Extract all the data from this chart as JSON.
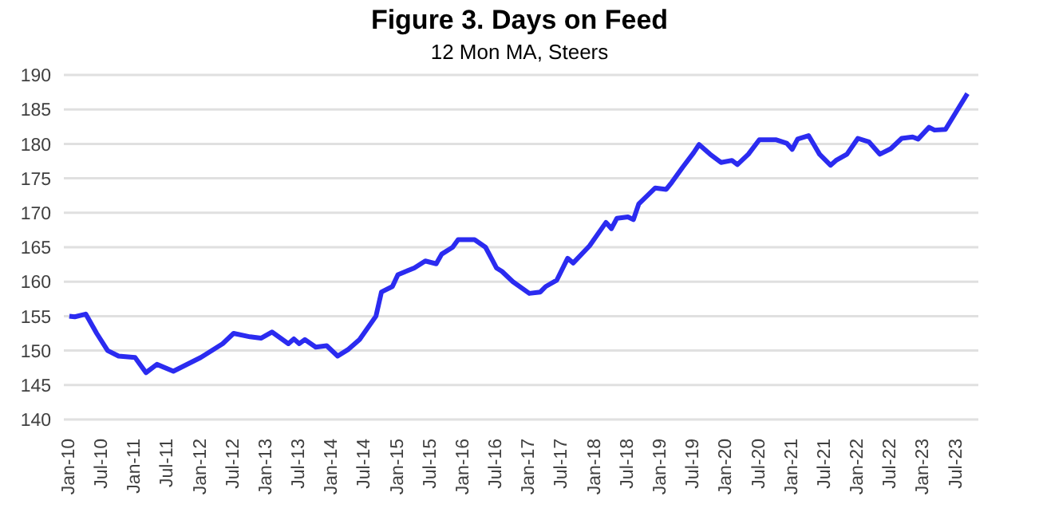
{
  "chart_data": {
    "type": "line",
    "title": "Figure 3. Days on Feed",
    "subtitle": "12 Mon MA, Steers",
    "x": [
      "2010-01",
      "2010-02",
      "2010-04",
      "2010-06",
      "2010-08",
      "2010-10",
      "2011-01",
      "2011-03",
      "2011-05",
      "2011-08",
      "2012-01",
      "2012-05",
      "2012-07",
      "2012-10",
      "2012-12",
      "2013-02",
      "2013-05",
      "2013-06",
      "2013-07",
      "2013-08",
      "2013-10",
      "2013-12",
      "2014-02",
      "2014-04",
      "2014-06",
      "2014-09",
      "2014-10",
      "2014-12",
      "2015-01",
      "2015-04",
      "2015-06",
      "2015-08",
      "2015-09",
      "2015-11",
      "2015-12",
      "2016-03",
      "2016-05",
      "2016-06",
      "2016-07",
      "2016-08",
      "2016-10",
      "2017-01",
      "2017-03",
      "2017-04",
      "2017-06",
      "2017-08",
      "2017-09",
      "2017-12",
      "2018-03",
      "2018-04",
      "2018-05",
      "2018-07",
      "2018-08",
      "2018-09",
      "2018-12",
      "2019-02",
      "2019-03",
      "2019-05",
      "2019-07",
      "2019-08",
      "2019-10",
      "2019-12",
      "2020-02",
      "2020-03",
      "2020-05",
      "2020-07",
      "2020-10",
      "2020-12",
      "2021-01",
      "2021-02",
      "2021-04",
      "2021-06",
      "2021-08",
      "2021-09",
      "2021-11",
      "2022-01",
      "2022-03",
      "2022-05",
      "2022-07",
      "2022-09",
      "2022-11",
      "2022-12",
      "2023-02",
      "2023-03",
      "2023-05",
      "2023-07",
      "2023-09"
    ],
    "series": [
      {
        "color": "#2b2bf0",
        "values": [
          155.0,
          154.9,
          155.3,
          152.5,
          150.0,
          149.2,
          149.0,
          146.8,
          148.0,
          147.0,
          149.0,
          151.0,
          152.5,
          152.0,
          151.8,
          152.7,
          151.0,
          151.7,
          151.0,
          151.6,
          150.5,
          150.7,
          149.2,
          150.2,
          151.6,
          155.0,
          158.5,
          159.3,
          161.0,
          162.0,
          163.0,
          162.6,
          164.0,
          165.0,
          166.1,
          166.1,
          165.0,
          163.5,
          162.0,
          161.5,
          160.0,
          158.3,
          158.5,
          159.3,
          160.2,
          163.4,
          162.7,
          165.2,
          168.6,
          167.7,
          169.2,
          169.4,
          169.0,
          171.3,
          173.6,
          173.4,
          174.4,
          176.6,
          178.7,
          179.9,
          178.5,
          177.3,
          177.6,
          177.0,
          178.5,
          180.6,
          180.6,
          180.1,
          179.2,
          180.7,
          181.2,
          178.5,
          176.9,
          177.6,
          178.5,
          180.8,
          180.3,
          178.5,
          179.3,
          180.8,
          181.0,
          180.7,
          182.4,
          182.0,
          182.1,
          184.7,
          187.3
        ]
      }
    ],
    "xlim": [
      "2009-12",
      "2023-11"
    ],
    "xticks": [
      {
        "value": "2010-01",
        "label": "Jan-10"
      },
      {
        "value": "2010-07",
        "label": "Jul-10"
      },
      {
        "value": "2011-01",
        "label": "Jan-11"
      },
      {
        "value": "2011-07",
        "label": "Jul-11"
      },
      {
        "value": "2012-01",
        "label": "Jan-12"
      },
      {
        "value": "2012-07",
        "label": "Jul-12"
      },
      {
        "value": "2013-01",
        "label": "Jan-13"
      },
      {
        "value": "2013-07",
        "label": "Jul-13"
      },
      {
        "value": "2014-01",
        "label": "Jan-14"
      },
      {
        "value": "2014-07",
        "label": "Jul-14"
      },
      {
        "value": "2015-01",
        "label": "Jan-15"
      },
      {
        "value": "2015-07",
        "label": "Jul-15"
      },
      {
        "value": "2016-01",
        "label": "Jan-16"
      },
      {
        "value": "2016-07",
        "label": "Jul-16"
      },
      {
        "value": "2017-01",
        "label": "Jan-17"
      },
      {
        "value": "2017-07",
        "label": "Jul-17"
      },
      {
        "value": "2018-01",
        "label": "Jan-18"
      },
      {
        "value": "2018-07",
        "label": "Jul-18"
      },
      {
        "value": "2019-01",
        "label": "Jan-19"
      },
      {
        "value": "2019-07",
        "label": "Jul-19"
      },
      {
        "value": "2020-01",
        "label": "Jan-20"
      },
      {
        "value": "2020-07",
        "label": "Jul-20"
      },
      {
        "value": "2021-01",
        "label": "Jan-21"
      },
      {
        "value": "2021-07",
        "label": "Jul-21"
      },
      {
        "value": "2022-01",
        "label": "Jan-22"
      },
      {
        "value": "2022-07",
        "label": "Jul-22"
      },
      {
        "value": "2023-01",
        "label": "Jan-23"
      },
      {
        "value": "2023-07",
        "label": "Jul-23"
      }
    ],
    "ylim": [
      140,
      190
    ],
    "yticks": [
      140,
      145,
      150,
      155,
      160,
      165,
      170,
      175,
      180,
      185,
      190
    ],
    "grid": "y",
    "legend": false,
    "marker": "none",
    "line_style": "solid"
  }
}
